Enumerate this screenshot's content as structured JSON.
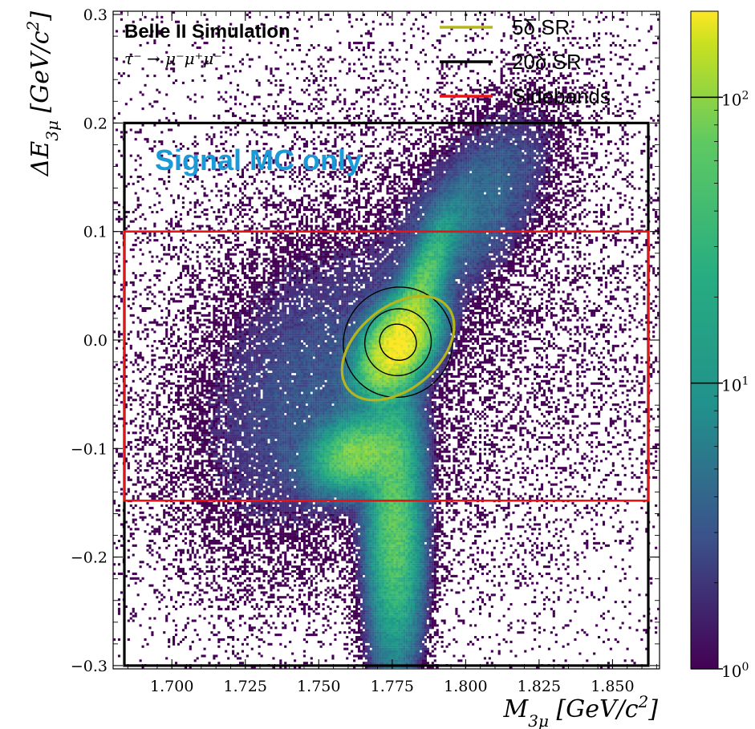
{
  "chart_data": {
    "type": "heatmap",
    "title": "Belle II Simulation",
    "subtitle": "τ⁻ → μ⁻μ⁺μ⁻",
    "annotation": "Signal MC only",
    "annotation_color": "#1a9ad6",
    "xlabel": "M_{3μ} [GeV/c^2]",
    "ylabel": "ΔE_{3μ} [GeV/c^2]",
    "xlim": [
      1.68,
      1.866
    ],
    "ylim": [
      -0.303,
      0.303
    ],
    "x_ticks": [
      1.7,
      1.725,
      1.75,
      1.775,
      1.8,
      1.825,
      1.85
    ],
    "x_tick_labels": [
      "1.700",
      "1.725",
      "1.750",
      "1.775",
      "1.800",
      "1.825",
      "1.850"
    ],
    "y_ticks": [
      0.3,
      0.2,
      0.1,
      0.0,
      -0.1,
      -0.2,
      -0.3
    ],
    "y_tick_labels": [
      "0.3",
      "0.2",
      "0.1",
      "0.0",
      "−0.1",
      "−0.2",
      "−0.3"
    ],
    "colorbar": {
      "scale": "log",
      "min": 1,
      "max": 200,
      "colormap": "viridis",
      "tick_values": [
        1,
        10,
        100
      ],
      "tick_labels": [
        "10^0",
        "10^1",
        "10^2"
      ]
    },
    "legend_position": "top-right",
    "legend": [
      {
        "label": "5δ SR",
        "color": "#b5b51c"
      },
      {
        "label": "20δ SR",
        "color": "#000000"
      },
      {
        "label": "Sidebands",
        "color": "#ee1111"
      }
    ],
    "signal_peak": {
      "x": 1.777,
      "y": 0.0
    },
    "regions": {
      "sr_5delta": {
        "type": "ellipse",
        "cx": 1.777,
        "cy": -0.0075,
        "semi_axis_major": 0.022,
        "semi_axis_minor": 0.017,
        "color": "#b5b51c"
      },
      "sr_20delta": {
        "type": "rectangle",
        "x": [
          1.68,
          1.866
        ],
        "y": [
          -0.3,
          0.2
        ],
        "color": "#000000"
      },
      "sidebands": {
        "type": "rectangle",
        "x": [
          1.68,
          1.866
        ],
        "y": [
          -0.148,
          0.1
        ],
        "color": "#ee1111"
      }
    }
  }
}
